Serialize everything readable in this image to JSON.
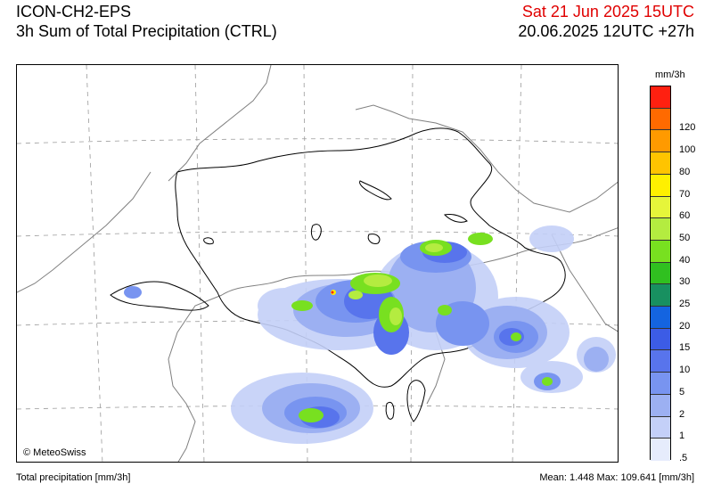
{
  "header": {
    "model": "ICON-CH2-EPS",
    "product": "3h Sum of Total Precipitation (CTRL)",
    "valid_time": "Sat 21 Jun 2025 15UTC",
    "run_time": "20.06.2025 12UTC +27h"
  },
  "map": {
    "copyright": "© MeteoSwiss"
  },
  "legend": {
    "unit": "mm/3h",
    "classes": [
      {
        "label": "",
        "color": "#ff2010"
      },
      {
        "label": "120",
        "color": "#ff6a00"
      },
      {
        "label": "100",
        "color": "#ff9a00"
      },
      {
        "label": "80",
        "color": "#ffc400"
      },
      {
        "label": "70",
        "color": "#fff000"
      },
      {
        "label": "60",
        "color": "#e6f53a"
      },
      {
        "label": "50",
        "color": "#b4ec40"
      },
      {
        "label": "40",
        "color": "#78e020"
      },
      {
        "label": "30",
        "color": "#30c020"
      },
      {
        "label": "25",
        "color": "#189060"
      },
      {
        "label": "20",
        "color": "#1464e0"
      },
      {
        "label": "15",
        "color": "#3c5ce6"
      },
      {
        "label": "10",
        "color": "#5874ec"
      },
      {
        "label": "5",
        "color": "#7894f0"
      },
      {
        "label": "2",
        "color": "#9cb0f2"
      },
      {
        "label": "1",
        "color": "#c4d0f8"
      },
      {
        "label": ".5",
        "color": "#e6ecfc"
      }
    ]
  },
  "footer": {
    "variable": "Total precipitation [mm/3h]",
    "stats": "Mean:   1.448 Max: 109.641 [mm/3h]"
  }
}
